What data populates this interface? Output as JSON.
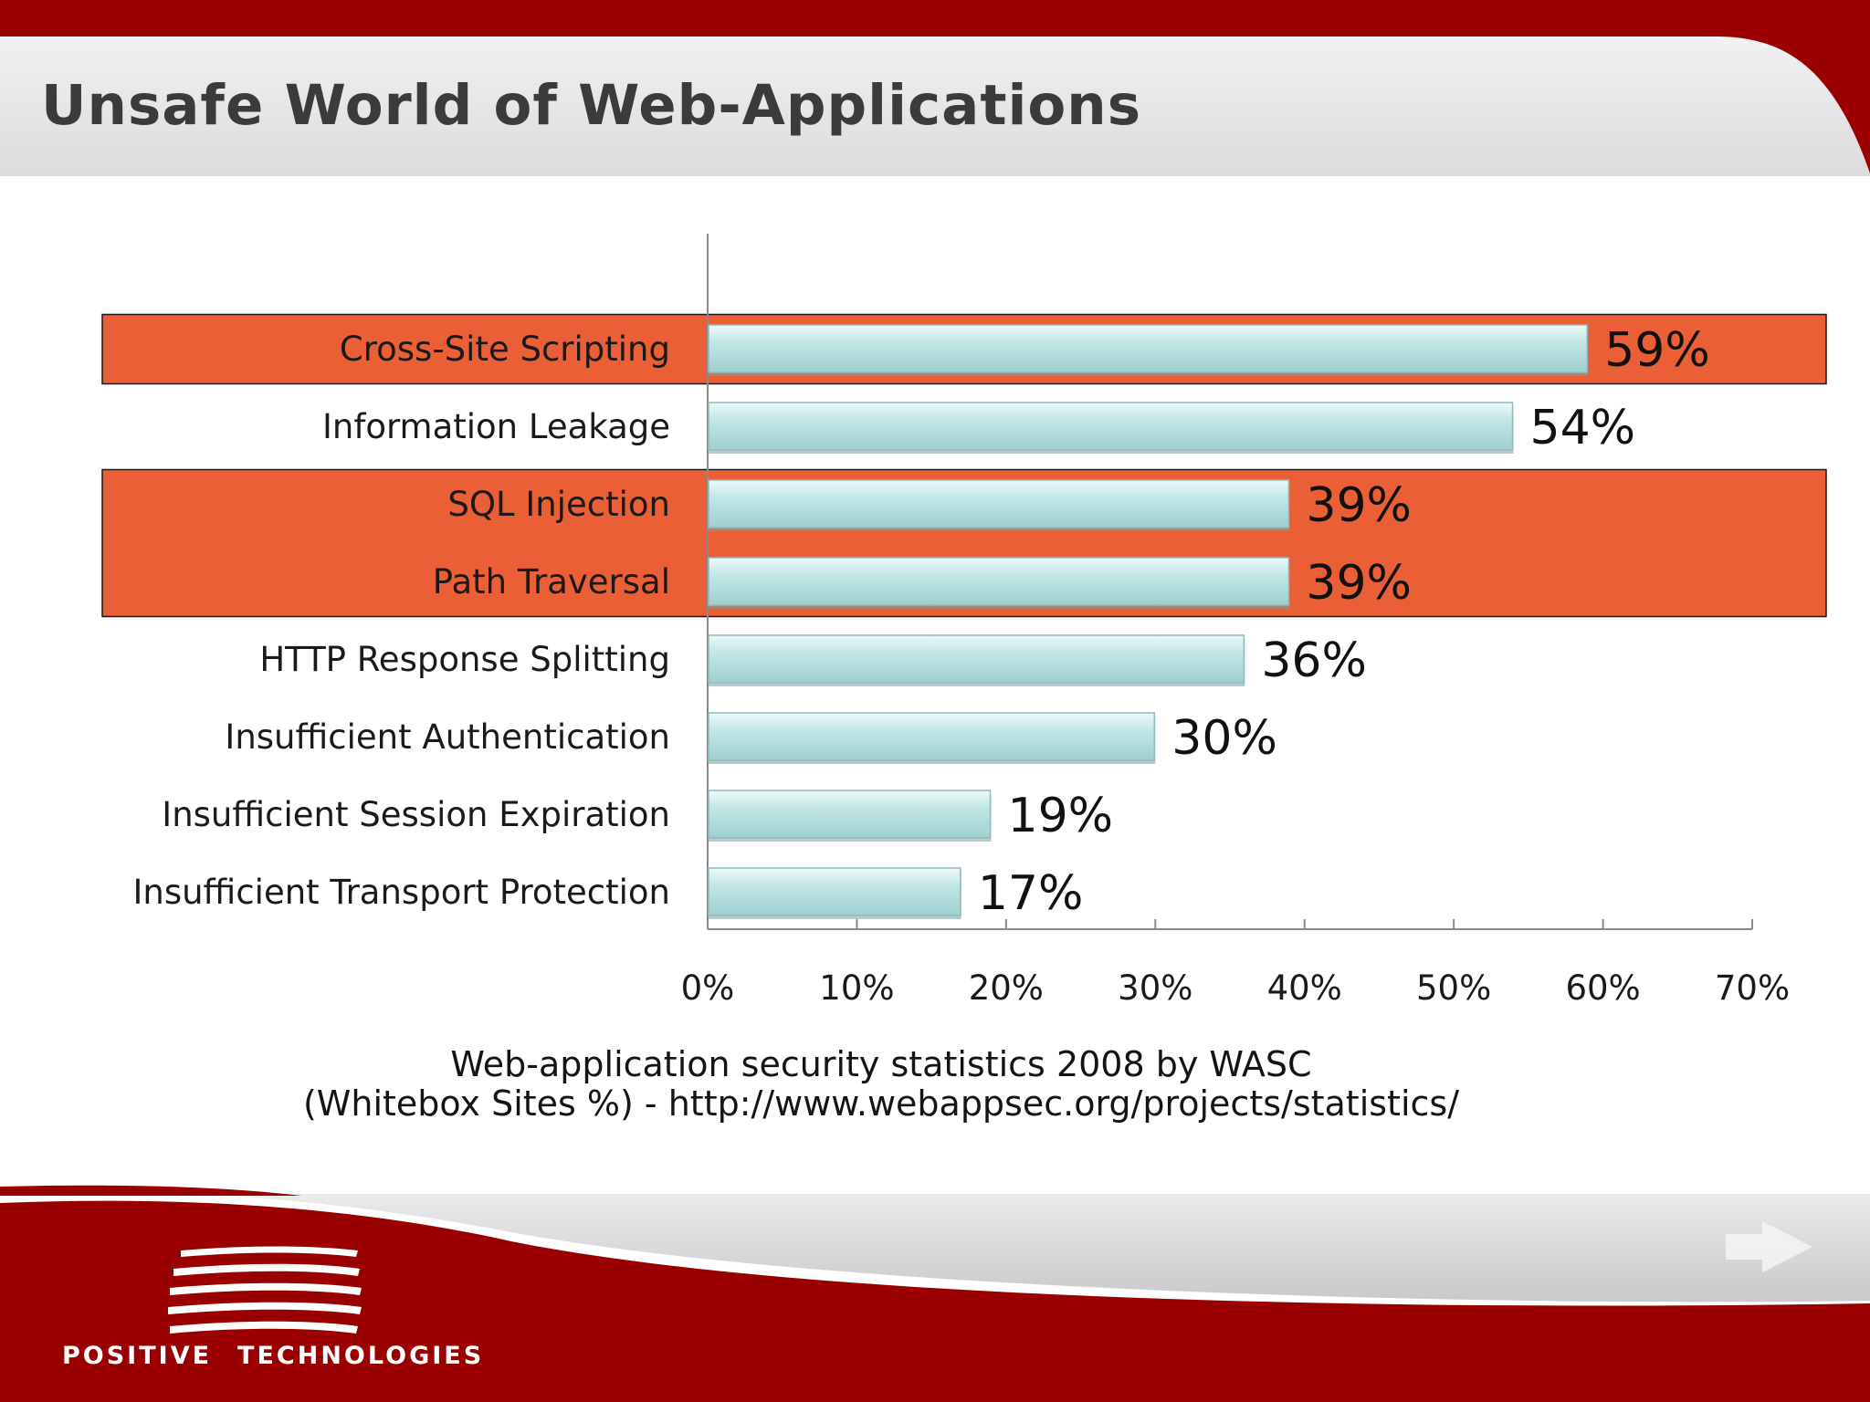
{
  "slide": {
    "title": "Unsafe World of Web-Applications",
    "caption_line1": "Web-application security statistics 2008 by WASC",
    "caption_line2": "(Whitebox Sites %) - http://www.webappsec.org/projects/statistics/"
  },
  "footer": {
    "brand_word1": "POSITIVE",
    "brand_word2": "TECHNOLOGIES",
    "next_icon": "arrow-right-icon"
  },
  "colors": {
    "brand_red": "#9b0000",
    "highlight": "#ea5f36",
    "bar_fill": "#c4e7e7",
    "header_band": "#e4e4e6"
  },
  "chart_data": {
    "type": "bar",
    "orientation": "horizontal",
    "categories": [
      "Cross-Site Scripting",
      "Information Leakage",
      "SQL Injection",
      "Path Traversal",
      "HTTP Response Splitting",
      "Insufficient Authentication",
      "Insufficient Session Expiration",
      "Insufficient Transport Protection"
    ],
    "values": [
      59,
      54,
      39,
      39,
      36,
      30,
      19,
      17
    ],
    "value_labels": [
      "59%",
      "54%",
      "39%",
      "39%",
      "36%",
      "30%",
      "19%",
      "17%"
    ],
    "highlighted": [
      "Cross-Site Scripting",
      "SQL Injection",
      "Path Traversal"
    ],
    "xlim": [
      0,
      70
    ],
    "xticks": [
      0,
      10,
      20,
      30,
      40,
      50,
      60,
      70
    ],
    "xtick_labels": [
      "0%",
      "10%",
      "20%",
      "30%",
      "40%",
      "50%",
      "60%",
      "70%"
    ],
    "grid": false,
    "legend": "none"
  }
}
